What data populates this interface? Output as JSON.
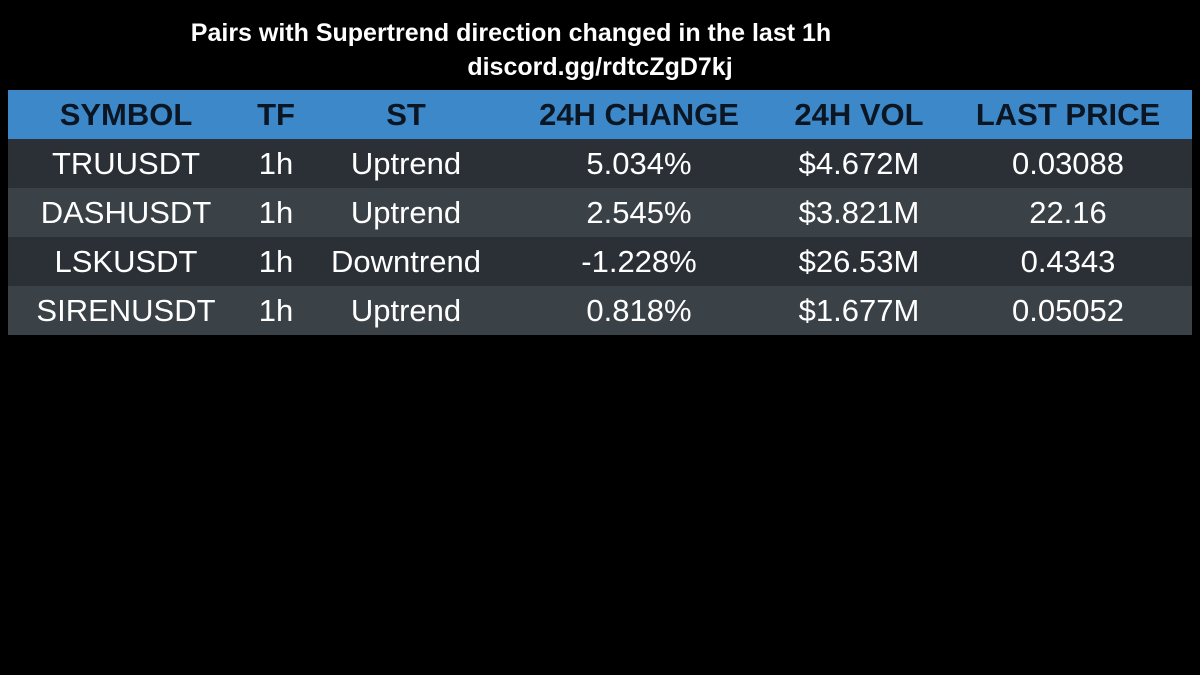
{
  "header": {
    "title": "Pairs with Supertrend direction changed in the last 1h",
    "subtitle": "discord.gg/rdtcZgD7kj"
  },
  "table": {
    "columns": [
      "SYMBOL",
      "TF",
      "ST",
      "24H CHANGE",
      "24H VOL",
      "LAST PRICE"
    ],
    "rows": [
      [
        "TRUUSDT",
        "1h",
        "Uptrend",
        "5.034%",
        "$4.672M",
        "0.03088"
      ],
      [
        "DASHUSDT",
        "1h",
        "Uptrend",
        "2.545%",
        "$3.821M",
        "22.16"
      ],
      [
        "LSKUSDT",
        "1h",
        "Downtrend",
        "-1.228%",
        "$26.53M",
        "0.4343"
      ],
      [
        "SIRENUSDT",
        "1h",
        "Uptrend",
        "0.818%",
        "$1.677M",
        "0.05052"
      ]
    ]
  }
}
